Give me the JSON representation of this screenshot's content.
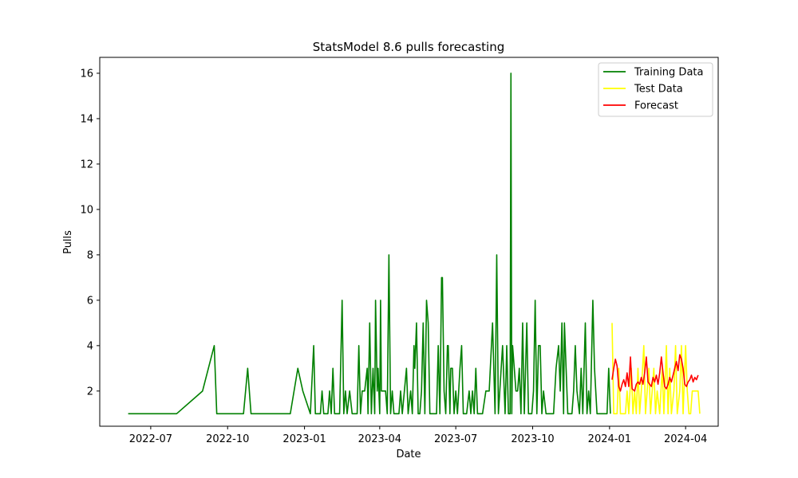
{
  "chart_data": {
    "type": "line",
    "title": "StatsModel 8.6 pulls forecasting",
    "xlabel": "Date",
    "ylabel": "Pulls",
    "x_type": "date",
    "xlim": [
      "2022-05-01",
      "2024-05-10"
    ],
    "ylim": [
      0.45,
      16.7
    ],
    "x_ticks": [
      {
        "date": "2022-07-01",
        "label": "2022-07"
      },
      {
        "date": "2022-10-01",
        "label": "2022-10"
      },
      {
        "date": "2023-01-01",
        "label": "2023-01"
      },
      {
        "date": "2023-04-01",
        "label": "2023-04"
      },
      {
        "date": "2023-07-01",
        "label": "2023-07"
      },
      {
        "date": "2023-10-01",
        "label": "2023-10"
      },
      {
        "date": "2024-01-01",
        "label": "2024-01"
      },
      {
        "date": "2024-04-01",
        "label": "2024-04"
      }
    ],
    "y_ticks": [
      {
        "value": 2,
        "label": "2"
      },
      {
        "value": 4,
        "label": "4"
      },
      {
        "value": 6,
        "label": "6"
      },
      {
        "value": 8,
        "label": "8"
      },
      {
        "value": 10,
        "label": "10"
      },
      {
        "value": 12,
        "label": "12"
      },
      {
        "value": 14,
        "label": "14"
      },
      {
        "value": 16,
        "label": "16"
      }
    ],
    "grid": false,
    "legend_position": "top-right",
    "series": [
      {
        "name": "Training Data",
        "color": "#008000",
        "points": [
          [
            "2022-06-04",
            1
          ],
          [
            "2022-08-01",
            1
          ],
          [
            "2022-09-01",
            2
          ],
          [
            "2022-09-15",
            4
          ],
          [
            "2022-09-18",
            1
          ],
          [
            "2022-10-20",
            1
          ],
          [
            "2022-10-25",
            3
          ],
          [
            "2022-10-29",
            1
          ],
          [
            "2022-12-15",
            1
          ],
          [
            "2022-12-24",
            3
          ],
          [
            "2022-12-30",
            2
          ],
          [
            "2023-01-08",
            1
          ],
          [
            "2023-01-12",
            4
          ],
          [
            "2023-01-14",
            1
          ],
          [
            "2023-01-20",
            1
          ],
          [
            "2023-01-22",
            2
          ],
          [
            "2023-01-24",
            1
          ],
          [
            "2023-01-29",
            1
          ],
          [
            "2023-01-31",
            2
          ],
          [
            "2023-02-02",
            1
          ],
          [
            "2023-02-04",
            3
          ],
          [
            "2023-02-06",
            1
          ],
          [
            "2023-02-12",
            1
          ],
          [
            "2023-02-15",
            6
          ],
          [
            "2023-02-17",
            1
          ],
          [
            "2023-02-19",
            2
          ],
          [
            "2023-02-21",
            1
          ],
          [
            "2023-02-24",
            2
          ],
          [
            "2023-02-27",
            1
          ],
          [
            "2023-03-05",
            1
          ],
          [
            "2023-03-07",
            4
          ],
          [
            "2023-03-09",
            1
          ],
          [
            "2023-03-11",
            2
          ],
          [
            "2023-03-14",
            2
          ],
          [
            "2023-03-17",
            3
          ],
          [
            "2023-03-18",
            1
          ],
          [
            "2023-03-20",
            5
          ],
          [
            "2023-03-22",
            1
          ],
          [
            "2023-03-24",
            3
          ],
          [
            "2023-03-26",
            1
          ],
          [
            "2023-03-27",
            6
          ],
          [
            "2023-03-29",
            2
          ],
          [
            "2023-03-30",
            3
          ],
          [
            "2023-04-01",
            1
          ],
          [
            "2023-04-02",
            6
          ],
          [
            "2023-04-03",
            2
          ],
          [
            "2023-04-08",
            2
          ],
          [
            "2023-04-10",
            1
          ],
          [
            "2023-04-12",
            8
          ],
          [
            "2023-04-14",
            1
          ],
          [
            "2023-04-16",
            2
          ],
          [
            "2023-04-18",
            1
          ],
          [
            "2023-04-24",
            1
          ],
          [
            "2023-04-26",
            2
          ],
          [
            "2023-04-28",
            1
          ],
          [
            "2023-05-03",
            3
          ],
          [
            "2023-05-05",
            1
          ],
          [
            "2023-05-08",
            2
          ],
          [
            "2023-05-10",
            1
          ],
          [
            "2023-05-12",
            4
          ],
          [
            "2023-05-13",
            3
          ],
          [
            "2023-05-15",
            5
          ],
          [
            "2023-05-17",
            1
          ],
          [
            "2023-05-19",
            1
          ],
          [
            "2023-05-21",
            2
          ],
          [
            "2023-05-23",
            5
          ],
          [
            "2023-05-25",
            1
          ],
          [
            "2023-05-27",
            6
          ],
          [
            "2023-05-29",
            5
          ],
          [
            "2023-05-31",
            1
          ],
          [
            "2023-06-08",
            1
          ],
          [
            "2023-06-10",
            4
          ],
          [
            "2023-06-12",
            1
          ],
          [
            "2023-06-14",
            7
          ],
          [
            "2023-06-15",
            7
          ],
          [
            "2023-06-17",
            2
          ],
          [
            "2023-06-19",
            1
          ],
          [
            "2023-06-21",
            4
          ],
          [
            "2023-06-22",
            4
          ],
          [
            "2023-06-24",
            1
          ],
          [
            "2023-06-25",
            3
          ],
          [
            "2023-06-27",
            3
          ],
          [
            "2023-06-29",
            1
          ],
          [
            "2023-07-01",
            2
          ],
          [
            "2023-07-03",
            1
          ],
          [
            "2023-07-06",
            3
          ],
          [
            "2023-07-08",
            4
          ],
          [
            "2023-07-10",
            1
          ],
          [
            "2023-07-14",
            1
          ],
          [
            "2023-07-17",
            2
          ],
          [
            "2023-07-19",
            1
          ],
          [
            "2023-07-21",
            2
          ],
          [
            "2023-07-23",
            1
          ],
          [
            "2023-07-25",
            3
          ],
          [
            "2023-07-27",
            1
          ],
          [
            "2023-08-02",
            1
          ],
          [
            "2023-08-06",
            2
          ],
          [
            "2023-08-10",
            2
          ],
          [
            "2023-08-14",
            5
          ],
          [
            "2023-08-17",
            1
          ],
          [
            "2023-08-19",
            8
          ],
          [
            "2023-08-21",
            1
          ],
          [
            "2023-08-26",
            4
          ],
          [
            "2023-08-29",
            1
          ],
          [
            "2023-08-31",
            4
          ],
          [
            "2023-09-02",
            1
          ],
          [
            "2023-09-04",
            1
          ],
          [
            "2023-09-05",
            16
          ],
          [
            "2023-09-06",
            1
          ],
          [
            "2023-09-07",
            4
          ],
          [
            "2023-09-09",
            3
          ],
          [
            "2023-09-11",
            2
          ],
          [
            "2023-09-13",
            2
          ],
          [
            "2023-09-15",
            3
          ],
          [
            "2023-09-17",
            1
          ],
          [
            "2023-09-19",
            5
          ],
          [
            "2023-09-21",
            1
          ],
          [
            "2023-09-24",
            5
          ],
          [
            "2023-09-26",
            1
          ],
          [
            "2023-09-30",
            1
          ],
          [
            "2023-10-02",
            2
          ],
          [
            "2023-10-04",
            6
          ],
          [
            "2023-10-06",
            1
          ],
          [
            "2023-10-08",
            4
          ],
          [
            "2023-10-10",
            4
          ],
          [
            "2023-10-12",
            1
          ],
          [
            "2023-10-14",
            2
          ],
          [
            "2023-10-17",
            1
          ],
          [
            "2023-10-26",
            1
          ],
          [
            "2023-10-29",
            3
          ],
          [
            "2023-11-01",
            4
          ],
          [
            "2023-11-03",
            2
          ],
          [
            "2023-11-05",
            5
          ],
          [
            "2023-11-07",
            1
          ],
          [
            "2023-11-08",
            5
          ],
          [
            "2023-11-10",
            3
          ],
          [
            "2023-11-12",
            1
          ],
          [
            "2023-11-17",
            1
          ],
          [
            "2023-11-19",
            2
          ],
          [
            "2023-11-21",
            4
          ],
          [
            "2023-11-23",
            2
          ],
          [
            "2023-11-26",
            1
          ],
          [
            "2023-11-28",
            3
          ],
          [
            "2023-11-30",
            1
          ],
          [
            "2023-12-03",
            5
          ],
          [
            "2023-12-05",
            1
          ],
          [
            "2023-12-07",
            2
          ],
          [
            "2023-12-09",
            1
          ],
          [
            "2023-12-12",
            6
          ],
          [
            "2023-12-14",
            3
          ],
          [
            "2023-12-17",
            1
          ],
          [
            "2023-12-24",
            1
          ],
          [
            "2023-12-29",
            1
          ],
          [
            "2023-12-31",
            3
          ],
          [
            "2024-01-02",
            1
          ]
        ]
      },
      {
        "name": "Test Data",
        "color": "#ffff00",
        "points": [
          [
            "2024-01-04",
            5
          ],
          [
            "2024-01-06",
            1
          ],
          [
            "2024-01-10",
            1
          ],
          [
            "2024-01-12",
            3
          ],
          [
            "2024-01-14",
            1
          ],
          [
            "2024-01-20",
            1
          ],
          [
            "2024-01-22",
            2
          ],
          [
            "2024-01-24",
            1
          ],
          [
            "2024-01-27",
            3
          ],
          [
            "2024-01-29",
            1
          ],
          [
            "2024-01-31",
            2
          ],
          [
            "2024-02-02",
            1
          ],
          [
            "2024-02-04",
            3
          ],
          [
            "2024-02-06",
            1
          ],
          [
            "2024-02-08",
            2
          ],
          [
            "2024-02-11",
            4
          ],
          [
            "2024-02-13",
            1
          ],
          [
            "2024-02-15",
            2
          ],
          [
            "2024-02-17",
            3
          ],
          [
            "2024-02-19",
            1
          ],
          [
            "2024-02-21",
            2
          ],
          [
            "2024-02-23",
            3
          ],
          [
            "2024-02-25",
            1
          ],
          [
            "2024-02-27",
            2
          ],
          [
            "2024-03-01",
            1
          ],
          [
            "2024-03-04",
            3
          ],
          [
            "2024-03-06",
            1
          ],
          [
            "2024-03-09",
            4
          ],
          [
            "2024-03-11",
            1
          ],
          [
            "2024-03-13",
            3
          ],
          [
            "2024-03-15",
            1
          ],
          [
            "2024-03-18",
            2
          ],
          [
            "2024-03-20",
            4
          ],
          [
            "2024-03-22",
            1
          ],
          [
            "2024-03-25",
            2
          ],
          [
            "2024-03-27",
            4
          ],
          [
            "2024-03-29",
            1
          ],
          [
            "2024-04-01",
            4
          ],
          [
            "2024-04-03",
            2
          ],
          [
            "2024-04-05",
            1
          ],
          [
            "2024-04-07",
            1
          ],
          [
            "2024-04-09",
            2
          ],
          [
            "2024-04-16",
            2
          ],
          [
            "2024-04-18",
            1
          ]
        ]
      },
      {
        "name": "Forecast",
        "color": "#ff0000",
        "points": [
          [
            "2024-01-04",
            2.5
          ],
          [
            "2024-01-06",
            3.0
          ],
          [
            "2024-01-08",
            3.4
          ],
          [
            "2024-01-10",
            3.1
          ],
          [
            "2024-01-12",
            2.2
          ],
          [
            "2024-01-14",
            2.0
          ],
          [
            "2024-01-16",
            2.3
          ],
          [
            "2024-01-18",
            2.5
          ],
          [
            "2024-01-20",
            2.2
          ],
          [
            "2024-01-22",
            2.8
          ],
          [
            "2024-01-24",
            2.2
          ],
          [
            "2024-01-26",
            3.5
          ],
          [
            "2024-01-28",
            2.1
          ],
          [
            "2024-01-31",
            2.0
          ],
          [
            "2024-02-02",
            2.3
          ],
          [
            "2024-02-04",
            2.4
          ],
          [
            "2024-02-06",
            2.3
          ],
          [
            "2024-02-08",
            2.6
          ],
          [
            "2024-02-10",
            2.3
          ],
          [
            "2024-02-12",
            2.8
          ],
          [
            "2024-02-14",
            3.5
          ],
          [
            "2024-02-16",
            2.4
          ],
          [
            "2024-02-18",
            2.3
          ],
          [
            "2024-02-20",
            2.2
          ],
          [
            "2024-02-22",
            2.6
          ],
          [
            "2024-02-24",
            2.4
          ],
          [
            "2024-02-26",
            2.7
          ],
          [
            "2024-02-28",
            2.3
          ],
          [
            "2024-03-01",
            2.8
          ],
          [
            "2024-03-03",
            3.5
          ],
          [
            "2024-03-05",
            2.8
          ],
          [
            "2024-03-07",
            2.2
          ],
          [
            "2024-03-09",
            2.1
          ],
          [
            "2024-03-11",
            2.3
          ],
          [
            "2024-03-13",
            2.6
          ],
          [
            "2024-03-15",
            2.4
          ],
          [
            "2024-03-17",
            2.7
          ],
          [
            "2024-03-19",
            3.0
          ],
          [
            "2024-03-21",
            3.3
          ],
          [
            "2024-03-23",
            2.9
          ],
          [
            "2024-03-25",
            3.6
          ],
          [
            "2024-03-27",
            3.4
          ],
          [
            "2024-03-29",
            3.0
          ],
          [
            "2024-03-31",
            2.3
          ],
          [
            "2024-04-02",
            2.2
          ],
          [
            "2024-04-04",
            2.4
          ],
          [
            "2024-04-06",
            2.5
          ],
          [
            "2024-04-08",
            2.7
          ],
          [
            "2024-04-10",
            2.4
          ],
          [
            "2024-04-12",
            2.6
          ],
          [
            "2024-04-14",
            2.5
          ],
          [
            "2024-04-16",
            2.7
          ]
        ]
      }
    ]
  }
}
